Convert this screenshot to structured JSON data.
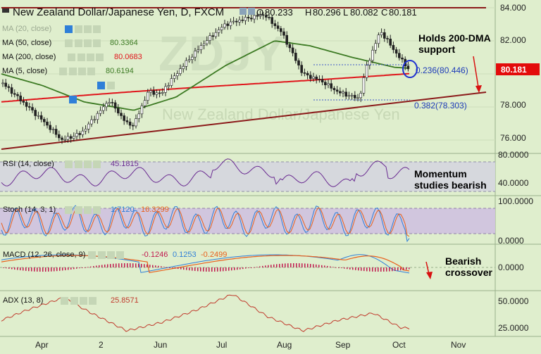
{
  "title": "New Zealand Dollar/Japanese Yen, D, FXCM",
  "watermark": "New Zealand Dollar/Japanese Yen",
  "ohlc": {
    "open_label": "O",
    "open": "80.233",
    "high_label": "H",
    "high": "80.296",
    "low_label": "L",
    "low": "80.082",
    "close_label": "C",
    "close": "80.181"
  },
  "colors": {
    "background": "#dfeecd",
    "ma50": "#3c7a23",
    "ma200": "#e0151b",
    "trendline": "#8b1a1a",
    "rsi": "#6a2b91",
    "stoch_k": "#2f7fd8",
    "stoch_d": "#e8601c",
    "macd": "#2f7fd8",
    "signal": "#e8601c",
    "hist": "#c0184e",
    "adx": "#c0392b",
    "annotation": "#000000",
    "price_badge": "#e30b0b"
  },
  "indicator_legends": {
    "ma20": {
      "label": "MA (20, close)"
    },
    "ma50": {
      "label": "MA (50, close)",
      "value": "80.3364"
    },
    "ma200": {
      "label": "MA (200, close)",
      "value": "80.0683"
    },
    "ma5": {
      "label": "MA (5, close)",
      "value": "80.6194"
    }
  },
  "annotations": {
    "support": [
      "Holds 200-DMA",
      "support"
    ],
    "momentum": [
      "Momentum",
      "studies bearish"
    ],
    "bearish": [
      "Bearish",
      "crossover"
    ]
  },
  "fib_levels": [
    {
      "label": "0.236(80.446)",
      "value": 80.446
    },
    {
      "label": "0.382(78.303)",
      "value": 78.303
    }
  ],
  "price_badge": "80.181",
  "panels": {
    "rsi": {
      "label": "RSI (14, close)",
      "value": "45.1815",
      "ticks": [
        "80.0000",
        "40.0000"
      ]
    },
    "stoch": {
      "label": "Stoch (14, 3, 1)",
      "k_value": "1.7120",
      "d_value": "16.3299",
      "ticks": [
        "100.0000",
        "0.0000"
      ]
    },
    "macd": {
      "label": "MACD (12, 26, close, 9)",
      "macd_value": "-0.1246",
      "signal_value": "0.1253",
      "hist_value": "-0.2499",
      "ticks": [
        "0.0000"
      ]
    },
    "adx": {
      "label": "ADX (13, 8)",
      "value": "25.8571",
      "ticks": [
        "50.0000",
        "25.0000"
      ]
    }
  },
  "price_axis": [
    "84.000",
    "82.000",
    "80.000",
    "78.000",
    "76.000"
  ],
  "time_axis": [
    "Apr",
    "2",
    "Jun",
    "Jul",
    "Aug",
    "Sep",
    "Oct",
    "Nov"
  ],
  "chart_data": {
    "type": "candlestick",
    "title": "New Zealand Dollar/Japanese Yen, D, FXCM",
    "ylim": [
      75.3,
      84.4
    ],
    "y_ticks": [
      76,
      78,
      80,
      82,
      84
    ],
    "x_tick_labels": [
      "Apr",
      "2",
      "Jun",
      "Jul",
      "Aug",
      "Sep",
      "Oct",
      "Nov"
    ],
    "price_path": [
      {
        "x": "Mar",
        "y": 79.5
      },
      {
        "x": "Apr",
        "y": 77.2
      },
      {
        "x": "Apr",
        "y": 76.0
      },
      {
        "x": "Apr",
        "y": 76.4
      },
      {
        "x": "May",
        "y": 78.4
      },
      {
        "x": "May",
        "y": 77.0
      },
      {
        "x": "2",
        "y": 78.9
      },
      {
        "x": "2",
        "y": 79.2
      },
      {
        "x": "2",
        "y": 76.9
      },
      {
        "x": "Jun",
        "y": 78.8
      },
      {
        "x": "Jun",
        "y": 80.5
      },
      {
        "x": "Jun",
        "y": 81.9
      },
      {
        "x": "Jul",
        "y": 83.0
      },
      {
        "x": "Jul",
        "y": 83.3
      },
      {
        "x": "Jul",
        "y": 83.6
      },
      {
        "x": "Aug",
        "y": 82.5
      },
      {
        "x": "Aug",
        "y": 80.0
      },
      {
        "x": "Aug",
        "y": 79.6
      },
      {
        "x": "Aug",
        "y": 78.9
      },
      {
        "x": "Sep",
        "y": 78.5
      },
      {
        "x": "Sep",
        "y": 80.4
      },
      {
        "x": "Sep",
        "y": 82.6
      },
      {
        "x": "Oct",
        "y": 81.1
      },
      {
        "x": "Oct",
        "y": 80.2
      }
    ],
    "series": [
      {
        "name": "MA (50, close)",
        "last": 80.3364
      },
      {
        "name": "MA (200, close)",
        "last": 80.0683
      },
      {
        "name": "MA (5, close)",
        "last": 80.6194
      }
    ],
    "fibonacci": [
      {
        "ratio": 0.236,
        "value": 80.446
      },
      {
        "ratio": 0.382,
        "value": 78.303
      }
    ],
    "last_close": 80.181,
    "indicators": {
      "rsi": {
        "last": 45.1815,
        "ylim": [
          20,
          90
        ]
      },
      "stoch": {
        "k_last": 1.712,
        "d_last": 16.3299,
        "ylim": [
          0,
          100
        ]
      },
      "macd": {
        "macd_last": -0.1246,
        "signal_last": 0.1253,
        "hist_last": -0.2499
      },
      "adx": {
        "last": 25.8571,
        "ylim": [
          20,
          60
        ]
      }
    }
  }
}
